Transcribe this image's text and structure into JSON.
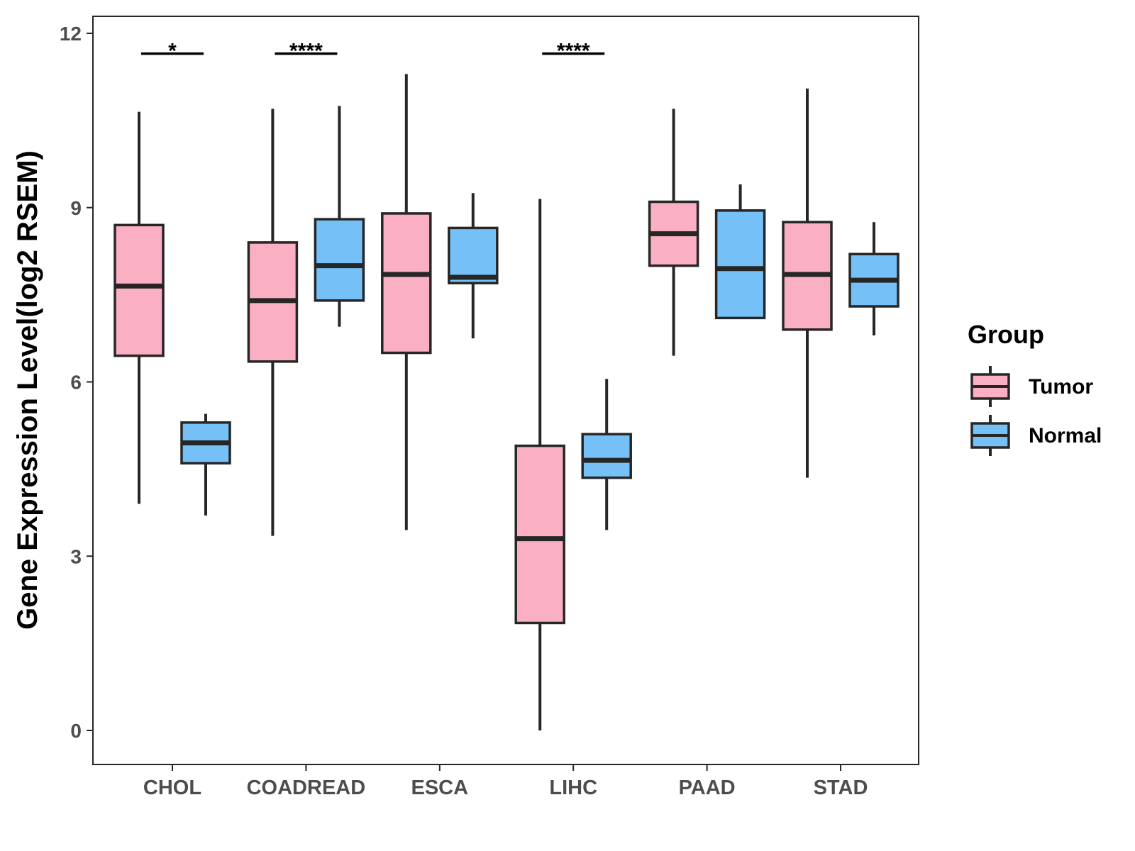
{
  "chart_data": {
    "type": "boxplot",
    "ylabel": "Gene Expression Level(log2 RSEM)",
    "xlabel": "",
    "ylim": [
      -0.55,
      12.35
    ],
    "yticks": [
      0,
      3,
      6,
      9,
      12
    ],
    "ytick_labels": [
      "0",
      "3",
      "6",
      "9",
      "12"
    ],
    "categories": [
      "CHOL",
      "COADREAD",
      "ESCA",
      "LIHC",
      "PAAD",
      "STAD"
    ],
    "legend": {
      "title": "Group",
      "position": "right",
      "entries": [
        "Tumor",
        "Normal"
      ]
    },
    "colors": {
      "Tumor": "#fbafc3",
      "Normal": "#75c1f7",
      "outline": "#262626"
    },
    "series": [
      {
        "name": "Tumor",
        "boxes": [
          {
            "category": "CHOL",
            "lower_whisker": 3.9,
            "q1": 6.45,
            "median": 7.65,
            "q3": 8.7,
            "upper_whisker": 10.65
          },
          {
            "category": "COADREAD",
            "lower_whisker": 3.35,
            "q1": 6.35,
            "median": 7.4,
            "q3": 8.4,
            "upper_whisker": 10.7
          },
          {
            "category": "ESCA",
            "lower_whisker": 3.45,
            "q1": 6.5,
            "median": 7.85,
            "q3": 8.9,
            "upper_whisker": 11.3
          },
          {
            "category": "LIHC",
            "lower_whisker": 0.0,
            "q1": 1.85,
            "median": 3.3,
            "q3": 4.9,
            "upper_whisker": 9.15
          },
          {
            "category": "PAAD",
            "lower_whisker": 6.45,
            "q1": 8.0,
            "median": 8.55,
            "q3": 9.1,
            "upper_whisker": 10.7
          },
          {
            "category": "STAD",
            "lower_whisker": 4.35,
            "q1": 6.9,
            "median": 7.85,
            "q3": 8.75,
            "upper_whisker": 11.05
          }
        ]
      },
      {
        "name": "Normal",
        "boxes": [
          {
            "category": "CHOL",
            "lower_whisker": 3.7,
            "q1": 4.6,
            "median": 4.95,
            "q3": 5.3,
            "upper_whisker": 5.45
          },
          {
            "category": "COADREAD",
            "lower_whisker": 6.95,
            "q1": 7.4,
            "median": 8.0,
            "q3": 8.8,
            "upper_whisker": 10.75
          },
          {
            "category": "ESCA",
            "lower_whisker": 6.75,
            "q1": 7.7,
            "median": 7.8,
            "q3": 8.65,
            "upper_whisker": 9.25
          },
          {
            "category": "LIHC",
            "lower_whisker": 3.45,
            "q1": 4.35,
            "median": 4.65,
            "q3": 5.1,
            "upper_whisker": 6.05
          },
          {
            "category": "PAAD",
            "lower_whisker": 7.1,
            "q1": 7.1,
            "median": 7.95,
            "q3": 8.95,
            "upper_whisker": 9.4
          },
          {
            "category": "STAD",
            "lower_whisker": 6.8,
            "q1": 7.3,
            "median": 7.75,
            "q3": 8.2,
            "upper_whisker": 8.75
          }
        ]
      }
    ],
    "significance": [
      {
        "category": "CHOL",
        "label": "*",
        "y": 11.65
      },
      {
        "category": "COADREAD",
        "label": "****",
        "y": 11.65
      },
      {
        "category": "LIHC",
        "label": "****",
        "y": 11.65
      }
    ]
  }
}
